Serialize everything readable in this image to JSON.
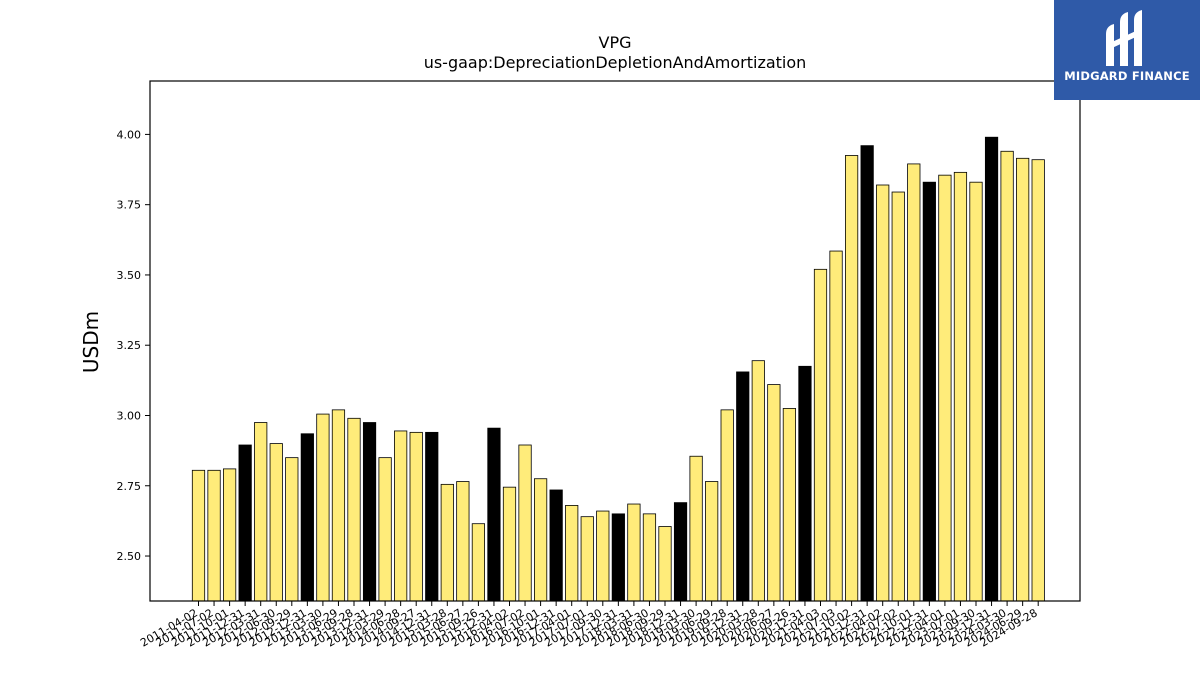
{
  "logo": {
    "text": "MIDGARD FINANCE",
    "background": "#2f5aa8"
  },
  "chart_data": {
    "type": "bar",
    "title": "VPG",
    "subtitle": "us-gaap:DepreciationDepletionAndAmortization",
    "xlabel": "",
    "ylabel": "USDm",
    "ylim": [
      2.34,
      4.19
    ],
    "yticks": [
      "2.50",
      "2.75",
      "3.00",
      "3.25",
      "3.50",
      "3.75",
      "4.00"
    ],
    "grid": false,
    "colors": {
      "quarter": "#ffec7a",
      "annual": "#000000",
      "edge": "#000000"
    },
    "categories": [
      "2011-04-02",
      "2011-07-02",
      "2011-10-01",
      "2011-12-31",
      "2012-03-31",
      "2012-06-30",
      "2012-09-29",
      "2012-12-31",
      "2013-03-30",
      "2013-06-29",
      "2013-09-28",
      "2013-12-31",
      "2014-03-29",
      "2014-06-28",
      "2014-09-27",
      "2014-12-31",
      "2015-03-28",
      "2015-06-27",
      "2015-09-26",
      "2015-12-31",
      "2016-04-02",
      "2016-07-02",
      "2016-10-01",
      "2016-12-31",
      "2017-04-01",
      "2017-07-01",
      "2017-09-30",
      "2017-12-31",
      "2018-03-31",
      "2018-06-30",
      "2018-09-29",
      "2018-12-31",
      "2019-03-30",
      "2019-06-29",
      "2019-09-28",
      "2019-12-31",
      "2020-03-28",
      "2020-06-27",
      "2020-09-26",
      "2020-12-31",
      "2021-04-03",
      "2021-07-03",
      "2021-10-02",
      "2021-12-31",
      "2022-04-02",
      "2022-07-02",
      "2022-10-01",
      "2022-12-31",
      "2023-04-01",
      "2023-07-01",
      "2023-09-30",
      "2023-12-31",
      "2024-03-30",
      "2024-06-29",
      "2024-09-28"
    ],
    "values": [
      2.805,
      2.805,
      2.81,
      2.895,
      2.975,
      2.9,
      2.85,
      2.935,
      3.005,
      3.02,
      2.99,
      2.975,
      2.85,
      2.945,
      2.94,
      2.94,
      2.755,
      2.765,
      2.615,
      2.955,
      2.745,
      2.895,
      2.775,
      2.735,
      2.68,
      2.64,
      2.66,
      2.65,
      2.685,
      2.65,
      2.605,
      2.69,
      2.855,
      2.765,
      3.02,
      3.155,
      3.195,
      3.11,
      3.025,
      3.175,
      3.52,
      3.585,
      3.925,
      3.96,
      3.82,
      3.795,
      3.895,
      3.83,
      3.855,
      3.865,
      3.83,
      3.99,
      3.94,
      3.915,
      3.91
    ],
    "annual": [
      false,
      false,
      false,
      true,
      false,
      false,
      false,
      true,
      false,
      false,
      false,
      true,
      false,
      false,
      false,
      true,
      false,
      false,
      false,
      true,
      false,
      false,
      false,
      true,
      false,
      false,
      false,
      true,
      false,
      false,
      false,
      true,
      false,
      false,
      false,
      true,
      false,
      false,
      false,
      true,
      false,
      false,
      false,
      true,
      false,
      false,
      false,
      true,
      false,
      false,
      false,
      true,
      false,
      false,
      false
    ]
  }
}
